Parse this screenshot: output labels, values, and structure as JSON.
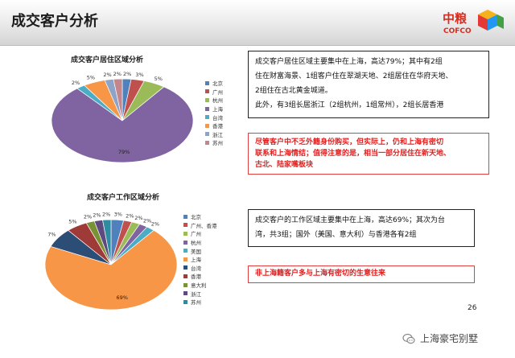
{
  "header": {
    "title": "成交客户分析",
    "logo_text": "中粮",
    "logo_sub": "COFCO"
  },
  "chart1": {
    "title": "成交客户居住区域分析",
    "legend": [
      "北京",
      "广州",
      "杭州",
      "上海",
      "台湾",
      "香港",
      "浙江",
      "苏州"
    ],
    "colors": [
      "#4f81bd",
      "#c0504d",
      "#9bbb59",
      "#8064a2",
      "#4bacc6",
      "#f79646",
      "#8da4c8",
      "#c3868d"
    ],
    "slices": [
      {
        "label": "北京",
        "pct": 2
      },
      {
        "label": "广州",
        "pct": 3
      },
      {
        "label": "杭州",
        "pct": 5
      },
      {
        "label": "上海",
        "pct": 79
      },
      {
        "label": "台湾",
        "pct": 2
      },
      {
        "label": "香港",
        "pct": 5
      },
      {
        "label": "浙江",
        "pct": 2
      },
      {
        "label": "苏州",
        "pct": 2
      }
    ]
  },
  "chart2": {
    "title": "成交客户工作区域分析",
    "legend": [
      "北京",
      "广州、香港",
      "广州",
      "杭州",
      "美国",
      "上海",
      "台湾",
      "香港",
      "意大利",
      "浙江",
      "苏州"
    ],
    "colors": [
      "#4f81bd",
      "#c0504d",
      "#9bbb59",
      "#8064a2",
      "#4bacc6",
      "#f79646",
      "#2c4d75",
      "#9e3a38",
      "#7a9236",
      "#5e4a7e",
      "#2e8ca0"
    ],
    "slices": [
      {
        "label": "北京",
        "pct": 3
      },
      {
        "label": "广州、香港",
        "pct": 2
      },
      {
        "label": "广州",
        "pct": 2
      },
      {
        "label": "杭州",
        "pct": 2
      },
      {
        "label": "美国",
        "pct": 2
      },
      {
        "label": "上海",
        "pct": 69
      },
      {
        "label": "台湾",
        "pct": 7
      },
      {
        "label": "香港",
        "pct": 5
      },
      {
        "label": "意大利",
        "pct": 2
      },
      {
        "label": "浙江",
        "pct": 2
      },
      {
        "label": "苏州",
        "pct": 2
      }
    ]
  },
  "box1": {
    "line1": "成交客户居住区域主要集中在上海，高达79%；其中有2组",
    "line2": "住在财富海景、1组客户住在翠湖天地、2组居住在华府天地、",
    "line3": "2组住在古北黄金城道。",
    "line4": "此外，有3组长居浙江（2组杭州，1组常州），2组长居香港"
  },
  "box2": {
    "line1": "尽管客户中不乏外籍身份购买，但实际上，仍和上海有密切",
    "line2": "联系和上海情结；值得注意的是，相当一部分居住在新天地、",
    "line3": "古北、陆家嘴板块"
  },
  "box3": {
    "line1": "成交客户的工作区域主要集中在上海，高达69%；其次为台",
    "line2": "湾，共3组；国外（美国、意大利）与香港各有2组"
  },
  "box4": {
    "text": "非上海籍客户多与上海有密切的生意往来"
  },
  "page_number": "26",
  "watermark": "上海豪宅别墅"
}
